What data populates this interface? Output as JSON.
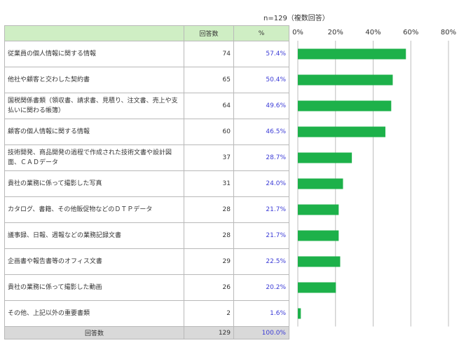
{
  "note": "n=129（複数回答）",
  "table": {
    "header": {
      "category": "",
      "count": "回答数",
      "percent": "%"
    },
    "rows": [
      {
        "label": "従業員の個人情報に関する情報",
        "count": "74",
        "percent": "57.4%"
      },
      {
        "label": "他社や顧客と交わした契約書",
        "count": "65",
        "percent": "50.4%"
      },
      {
        "label": "国税関係書類（領収書、請求書、見積り、注文書、売上や支払いに関わる帳簿）",
        "count": "64",
        "percent": "49.6%"
      },
      {
        "label": "顧客の個人情報に関する情報",
        "count": "60",
        "percent": "46.5%"
      },
      {
        "label": "技術開発、商品開発の過程で作成された技術文書や設計図面、ＣＡＤデータ",
        "count": "37",
        "percent": "28.7%"
      },
      {
        "label": "貴社の業務に係って撮影した写真",
        "count": "31",
        "percent": "24.0%"
      },
      {
        "label": "カタログ、書籍、その他販促物などのＤＴＰデータ",
        "count": "28",
        "percent": "21.7%"
      },
      {
        "label": "議事録、日報、週報などの業務記録文書",
        "count": "28",
        "percent": "21.7%"
      },
      {
        "label": "企画書や報告書等のオフィス文書",
        "count": "29",
        "percent": "22.5%"
      },
      {
        "label": "貴社の業務に係って撮影した動画",
        "count": "26",
        "percent": "20.2%"
      },
      {
        "label": "その他、上記以外の重要書類",
        "count": "2",
        "percent": "1.6%"
      }
    ],
    "footer": {
      "label": "回答数",
      "count": "129",
      "percent": "100.0%"
    }
  },
  "chart_data": {
    "type": "bar",
    "orientation": "horizontal",
    "categories": [
      "従業員の個人情報に関する情報",
      "他社や顧客と交わした契約書",
      "国税関係書類（領収書、請求書、見積り、注文書、売上や支払いに関わる帳簿）",
      "顧客の個人情報に関する情報",
      "技術開発、商品開発の過程で作成された技術文書や設計図面、ＣＡＤデータ",
      "貴社の業務に係って撮影した写真",
      "カタログ、書籍、その他販促物などのＤＴＰデータ",
      "議事録、日報、週報などの業務記録文書",
      "企画書や報告書等のオフィス文書",
      "貴社の業務に係って撮影した動画",
      "その他、上記以外の重要書類"
    ],
    "values": [
      57.4,
      50.4,
      49.6,
      46.5,
      28.7,
      24.0,
      21.7,
      21.7,
      22.5,
      20.2,
      1.6
    ],
    "xlim": [
      0,
      80
    ],
    "xticks": [
      "0%",
      "20%",
      "40%",
      "60%",
      "80%"
    ],
    "grid": true,
    "bar_color": "#1db14a",
    "gridline_color": "#bdbdbd"
  }
}
